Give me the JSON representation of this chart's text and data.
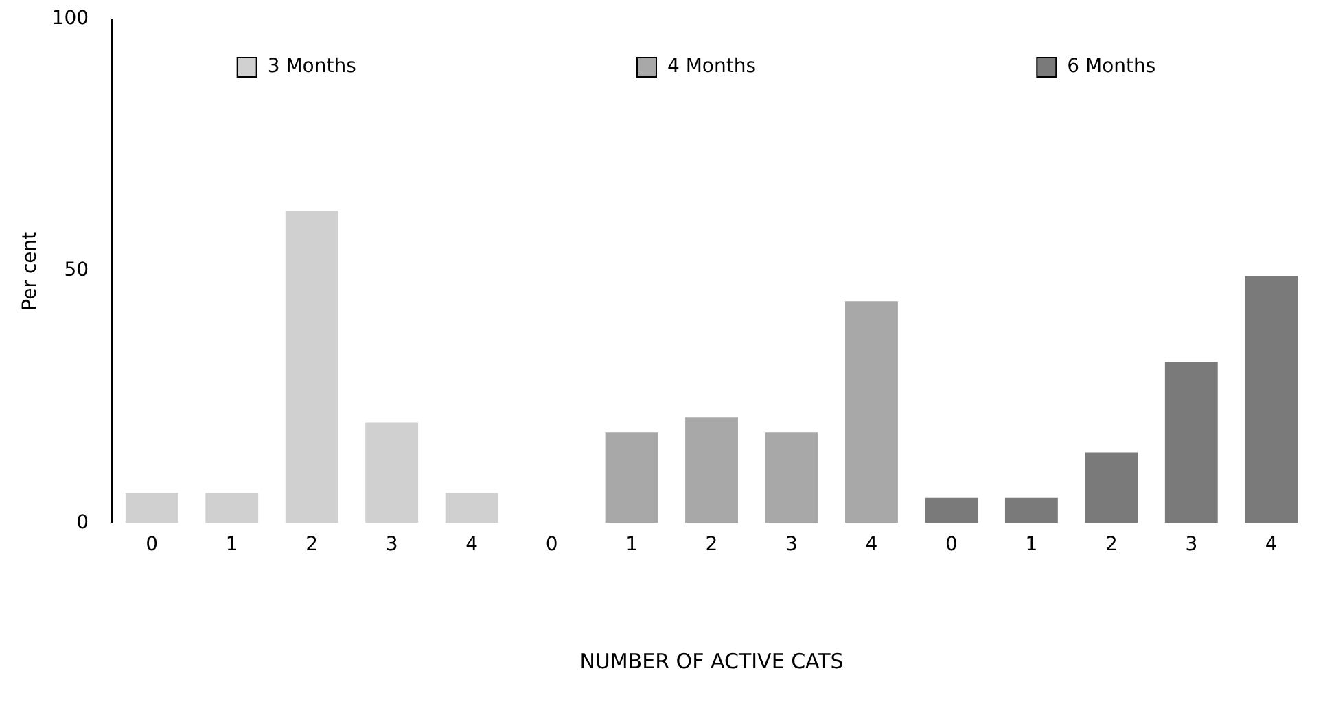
{
  "chart_data": {
    "type": "bar",
    "xlabel": "NUMBER OF ACTIVE CATS",
    "ylabel": "Per cent",
    "categories": [
      "0",
      "1",
      "2",
      "3",
      "4",
      "0",
      "1",
      "2",
      "3",
      "4",
      "0",
      "1",
      "2",
      "3",
      "4"
    ],
    "series": [
      {
        "name": "3 Months",
        "color": "#d0d0d0",
        "values": [
          6,
          6,
          62,
          20,
          6,
          null,
          null,
          null,
          null,
          null,
          null,
          null,
          null,
          null,
          null
        ]
      },
      {
        "name": "4 Months",
        "color": "#a8a8a8",
        "values": [
          null,
          null,
          null,
          null,
          null,
          0,
          18,
          21,
          18,
          44,
          null,
          null,
          null,
          null,
          null
        ]
      },
      {
        "name": "6 Months",
        "color": "#7a7a7a",
        "values": [
          null,
          null,
          null,
          null,
          null,
          null,
          null,
          null,
          null,
          null,
          5,
          5,
          14,
          32,
          49
        ]
      }
    ],
    "ylim": [
      0,
      100
    ],
    "yticks": [
      0,
      50,
      100
    ],
    "grid": false,
    "legend": "top"
  }
}
